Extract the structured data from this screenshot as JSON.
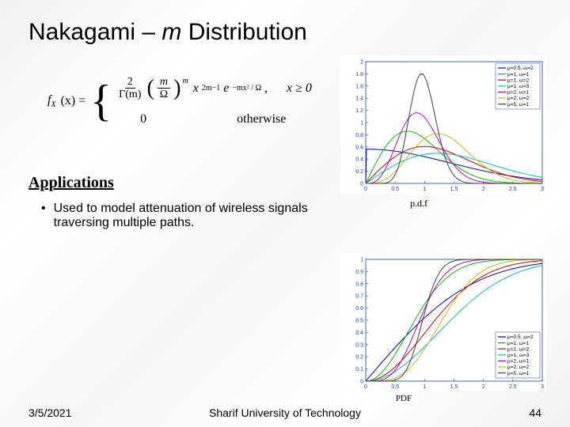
{
  "title_prefix": "Nakagami – ",
  "title_m": "m",
  "title_suffix": " Distribution",
  "formula": {
    "lhs": "f",
    "lhs_sub": "X",
    "lhs_arg": "(x) =",
    "case1_frac1_num": "2",
    "case1_frac1_den_gamma": "Γ(m)",
    "case1_frac2_num": "m",
    "case1_frac2_den": "Ω",
    "case1_pow_m": "m",
    "case1_x": "x",
    "case1_x_exp": "2m−1",
    "case1_e": "e",
    "case1_e_exp": "−mx² / Ω",
    "case1_comma": ",",
    "case1_cond": "x ≥ 0",
    "case2_zero": "0",
    "case2_cond": "otherwise"
  },
  "caption_pdf": "p.d.f",
  "caption_cdf": "PDF",
  "apps_heading": "Applications",
  "bullet": "Used to model attenuation of wireless signals traversing multiple paths.",
  "footer_date": "3/5/2021",
  "footer_center": "Sharif University of Technology",
  "footer_page": "44",
  "chart": {
    "pdf": {
      "xlim": [
        0,
        3
      ],
      "ylim": [
        0,
        2
      ],
      "xticks": [
        0,
        0.5,
        1,
        1.5,
        2,
        2.5,
        3
      ],
      "yticks": [
        0,
        0.2,
        0.4,
        0.6,
        0.8,
        1,
        1.2,
        1.4,
        1.6,
        1.8,
        2
      ],
      "legend": [
        "μ=0.5, ω=2",
        "μ=1, ω=1",
        "μ=1, ω=2",
        "μ=1, ω=3",
        "μ=2, ω=1",
        "μ=2, ω=2",
        "μ=5, ω=1"
      ],
      "colors": [
        "#0000d0",
        "#00c000",
        "#d00000",
        "#00c0c0",
        "#c000c0",
        "#c0c000",
        "#404040"
      ]
    },
    "cdf": {
      "xlim": [
        0,
        3
      ],
      "ylim": [
        0,
        1
      ],
      "xticks": [
        0,
        0.5,
        1,
        1.5,
        2,
        2.5,
        3
      ],
      "yticks": [
        0,
        0.1,
        0.2,
        0.3,
        0.4,
        0.5,
        0.6,
        0.7,
        0.8,
        0.9,
        1
      ],
      "legend": [
        "μ=0.5, ω=2",
        "μ=1, ω=1",
        "μ=1, ω=2",
        "μ=1, ω=3",
        "μ=2, ω=1",
        "μ=2, ω=2",
        "μ=5, ω=1"
      ],
      "colors": [
        "#0000d0",
        "#00c000",
        "#d00000",
        "#00c0c0",
        "#c000c0",
        "#c0c000",
        "#404040"
      ]
    }
  }
}
